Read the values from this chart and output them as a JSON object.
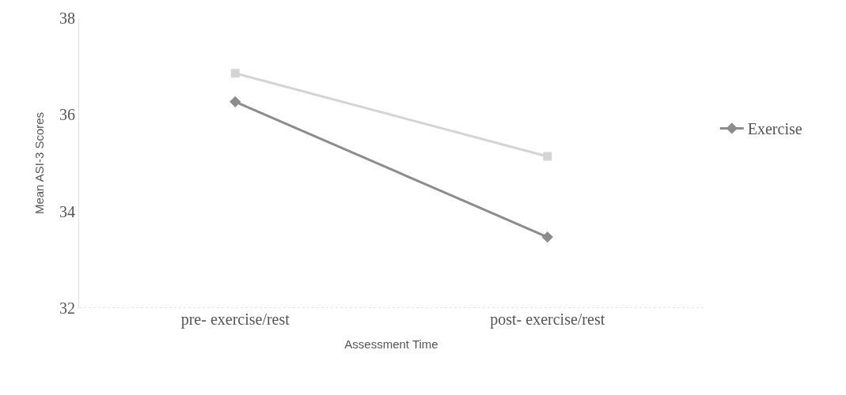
{
  "chart_data": {
    "type": "line",
    "xlabel": "Assessment Time",
    "ylabel": "Mean ASI-3 Scores",
    "categories": [
      "pre- exercise/rest",
      "post- exercise/rest"
    ],
    "series": [
      {
        "name": "Exercise",
        "color": "#8c8c8c",
        "values": [
          36.27,
          33.47
        ],
        "marker": "diamond"
      },
      {
        "color": "#d4d4d4",
        "values": [
          36.86,
          35.14
        ],
        "marker": "square"
      }
    ],
    "ylim": [
      32,
      38
    ],
    "yticks": [
      32,
      34,
      36,
      38
    ],
    "legend": "right"
  }
}
